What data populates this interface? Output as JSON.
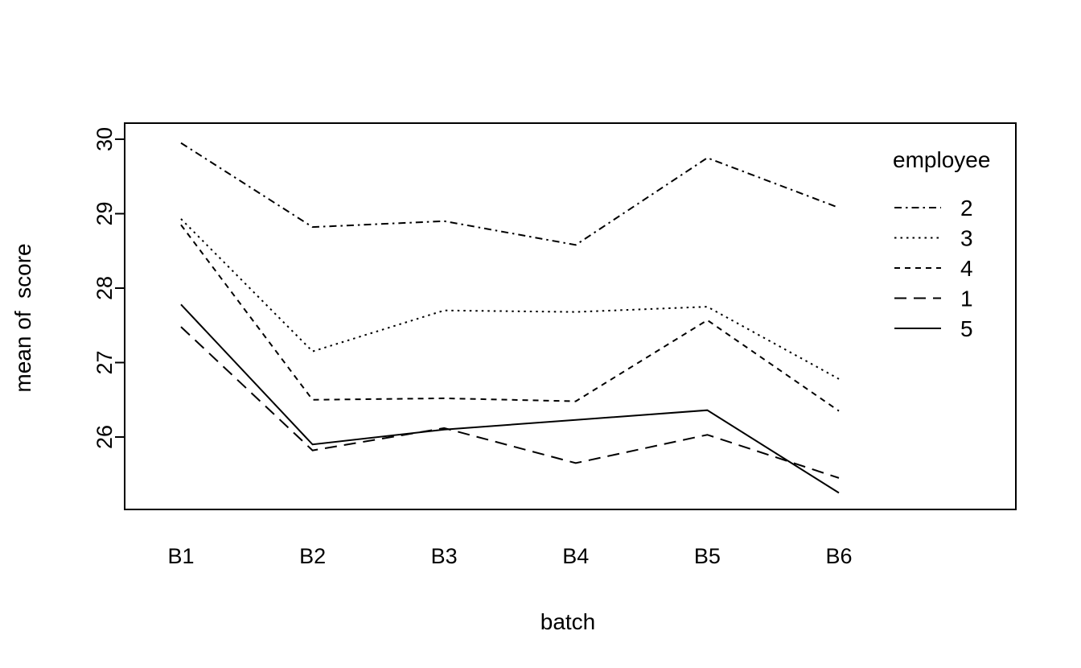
{
  "figure": {
    "background_color": "#ffffff",
    "line_color": "#000000"
  },
  "chart_data": {
    "type": "line",
    "title": "",
    "xlabel": "batch",
    "ylabel": "mean of  score",
    "categories": [
      "B1",
      "B2",
      "B3",
      "B4",
      "B5",
      "B6"
    ],
    "y_ticks": [
      26,
      27,
      28,
      29,
      30
    ],
    "y_tick_labels": [
      "26",
      "27",
      "28",
      "29",
      "30"
    ],
    "ylim": [
      25.0,
      30.25
    ],
    "grid": false,
    "legend": {
      "title": "employee",
      "position": "inside-top-right",
      "entries": [
        "2",
        "3",
        "4",
        "1",
        "5"
      ]
    },
    "series": [
      {
        "name": "2",
        "linestyle": "dashdot",
        "color": "#000000",
        "values": [
          29.95,
          28.82,
          28.9,
          28.58,
          29.75,
          29.08
        ]
      },
      {
        "name": "3",
        "linestyle": "dotted",
        "color": "#000000",
        "values": [
          28.93,
          27.15,
          27.7,
          27.68,
          27.75,
          26.78
        ]
      },
      {
        "name": "4",
        "linestyle": "dashed",
        "color": "#000000",
        "values": [
          28.85,
          26.5,
          26.52,
          26.48,
          27.57,
          26.35
        ]
      },
      {
        "name": "1",
        "linestyle": "longdash",
        "color": "#000000",
        "values": [
          27.48,
          25.82,
          26.12,
          25.65,
          26.03,
          25.45
        ]
      },
      {
        "name": "5",
        "linestyle": "solid",
        "color": "#000000",
        "values": [
          27.78,
          25.9,
          26.1,
          26.23,
          26.36,
          25.25
        ]
      }
    ]
  }
}
